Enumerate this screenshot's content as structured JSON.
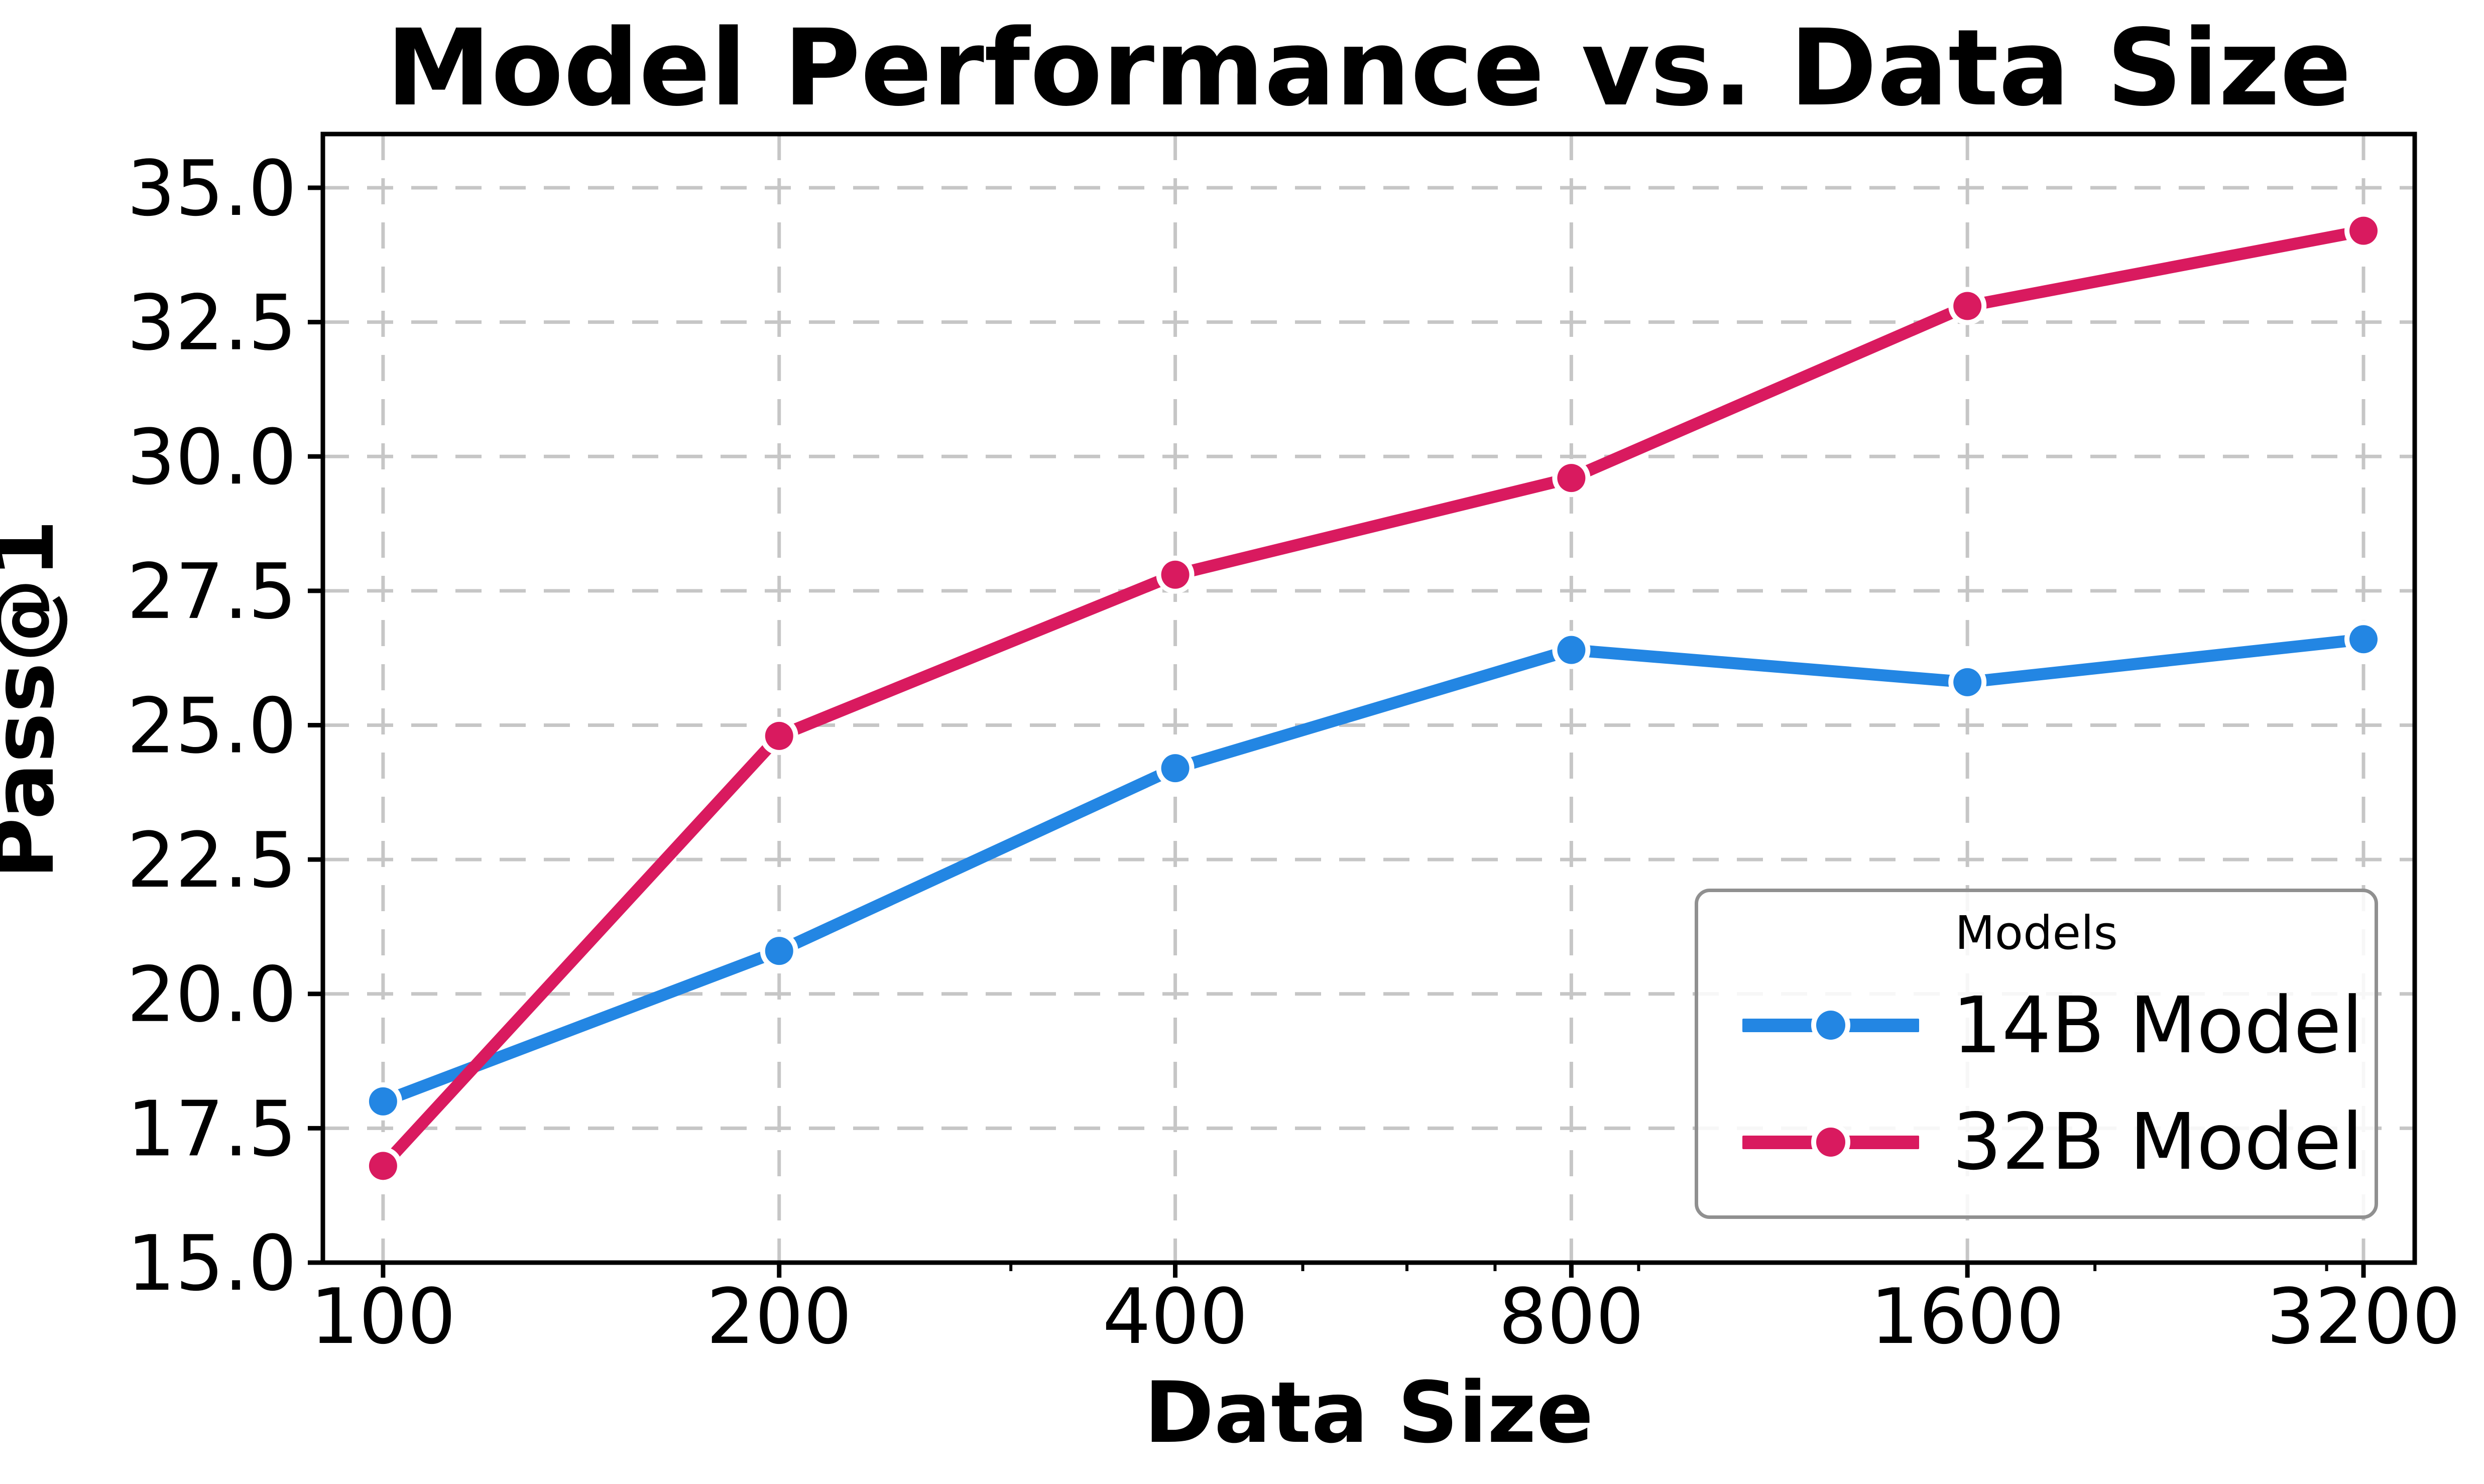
{
  "chart_data": {
    "type": "line",
    "title": "Model Performance vs. Data Size",
    "xlabel": "Data Size",
    "ylabel": "Pass@1",
    "x_scale": "log",
    "x": [
      100,
      200,
      400,
      800,
      1600,
      3200
    ],
    "x_tick_labels": [
      "100",
      "200",
      "400",
      "800",
      "1600",
      "3200"
    ],
    "x_minor_ticks": [
      300,
      500,
      600,
      700,
      900,
      2000,
      3000
    ],
    "y_ticks": [
      15.0,
      17.5,
      20.0,
      22.5,
      25.0,
      27.5,
      30.0,
      32.5,
      35.0
    ],
    "xlim": [
      90,
      3500
    ],
    "ylim": [
      15,
      36
    ],
    "grid": true,
    "series": [
      {
        "name": "14B Model",
        "color": "#2386E3",
        "values": [
          18.0,
          20.8,
          24.2,
          26.4,
          25.8,
          26.6
        ]
      },
      {
        "name": "32B Model",
        "color": "#D91A5F",
        "values": [
          16.8,
          24.8,
          27.8,
          29.6,
          32.8,
          34.2
        ]
      }
    ],
    "legend": {
      "title": "Models",
      "position": "lower right"
    }
  },
  "styles": {
    "background": "#FFFFFF",
    "text_color": "#000000",
    "grid_color": "#C6C6C6",
    "spine_color": "#000000",
    "legend_border_color": "#909090"
  }
}
